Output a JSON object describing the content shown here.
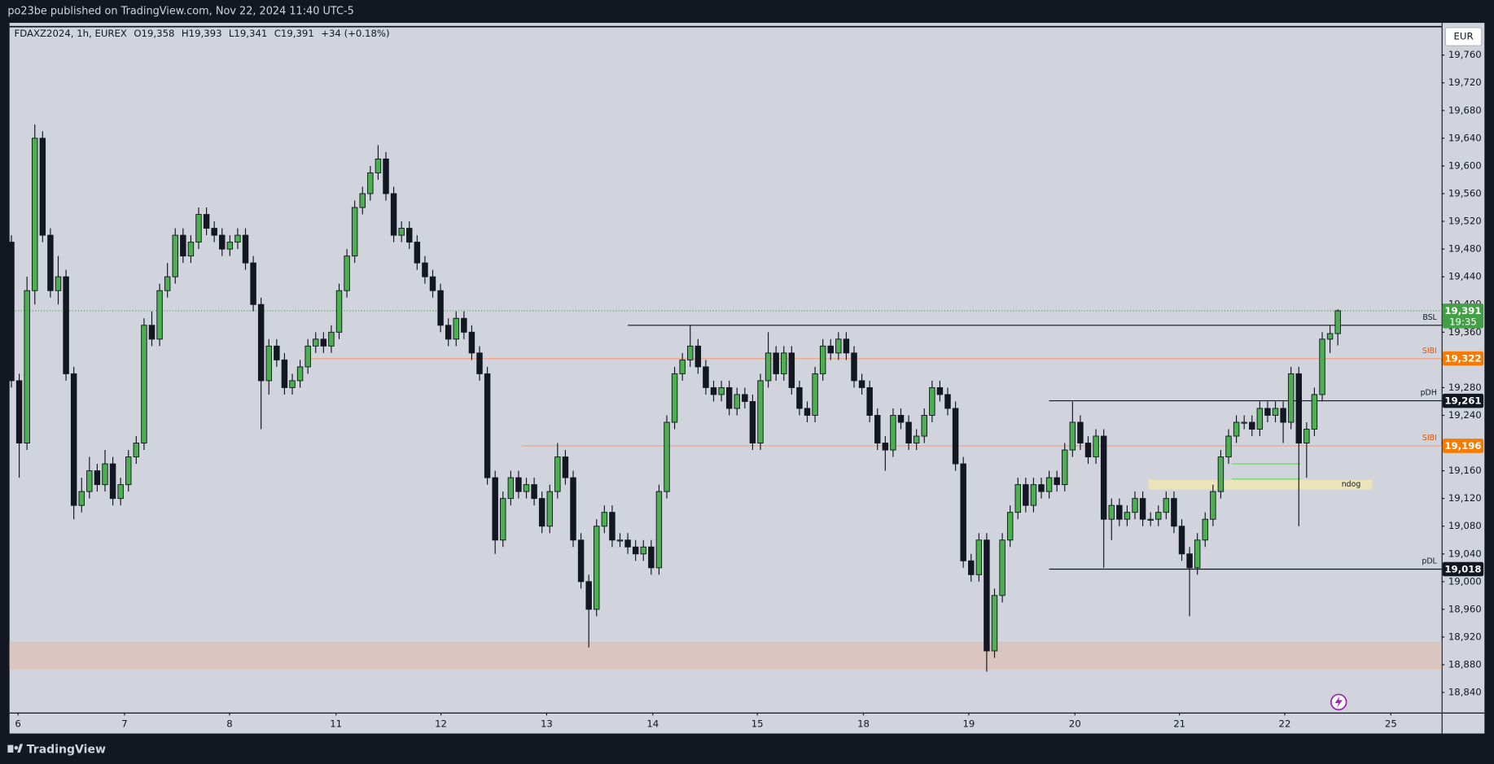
{
  "header": {
    "text": "po23be published on TradingView.com, Nov 22, 2024 11:40 UTC-5"
  },
  "footer": {
    "brand": "TradingView"
  },
  "chart_data": {
    "type": "candlestick",
    "legend": {
      "symbol": "FDAXZ2024, 1h, EUREX",
      "open": "O19,358",
      "high": "H19,393",
      "low": "L19,341",
      "close": "C19,391",
      "change": "+34 (+0.18%)"
    },
    "currency": "EUR",
    "up_color": "#4caf50",
    "down_color": "#131722",
    "xlim": [
      -0.24,
      183.3
    ],
    "xticks": [
      {
        "value": 0.85,
        "label": "6"
      },
      {
        "value": 14.5,
        "label": "7"
      },
      {
        "value": 27.96,
        "label": "8"
      },
      {
        "value": 41.6,
        "label": "11"
      },
      {
        "value": 55.05,
        "label": "12"
      },
      {
        "value": 68.6,
        "label": "13"
      },
      {
        "value": 82.2,
        "label": "14"
      },
      {
        "value": 95.6,
        "label": "15"
      },
      {
        "value": 109.2,
        "label": "18"
      },
      {
        "value": 122.7,
        "label": "19"
      },
      {
        "value": 136.3,
        "label": "20"
      },
      {
        "value": 149.7,
        "label": "21"
      },
      {
        "value": 163.2,
        "label": "22"
      },
      {
        "value": 176.8,
        "label": "25"
      }
    ],
    "ylim": [
      18811,
      19801
    ],
    "yticks": [
      {
        "value": 18840,
        "label": "18,840"
      },
      {
        "value": 18880,
        "label": "18,880"
      },
      {
        "value": 18920,
        "label": "18,920"
      },
      {
        "value": 18960,
        "label": "18,960"
      },
      {
        "value": 19000,
        "label": "19,000"
      },
      {
        "value": 19040,
        "label": "19,040"
      },
      {
        "value": 19080,
        "label": "19,080"
      },
      {
        "value": 19120,
        "label": "19,120"
      },
      {
        "value": 19160,
        "label": "19,160"
      },
      {
        "value": 19200,
        "label": "19,200"
      },
      {
        "value": 19240,
        "label": "19,240"
      },
      {
        "value": 19280,
        "label": "19,280"
      },
      {
        "value": 19320,
        "label": "19,320"
      },
      {
        "value": 19360,
        "label": "19,360"
      },
      {
        "value": 19400,
        "label": "19,400"
      },
      {
        "value": 19440,
        "label": "19,440"
      },
      {
        "value": 19480,
        "label": "19,480"
      },
      {
        "value": 19520,
        "label": "19,520"
      },
      {
        "value": 19560,
        "label": "19,560"
      },
      {
        "value": 19600,
        "label": "19,600"
      },
      {
        "value": 19640,
        "label": "19,640"
      },
      {
        "value": 19680,
        "label": "19,680"
      },
      {
        "value": 19720,
        "label": "19,720"
      },
      {
        "value": 19760,
        "label": "19,760"
      }
    ],
    "last_price": {
      "value": 19391,
      "label": "19,391",
      "countdown": "19:35",
      "color": "#43a047"
    },
    "levels": [
      {
        "name": "BSL",
        "value": 19370,
        "from": 79,
        "color": "#131722"
      },
      {
        "name": "SIBI",
        "value": 19322,
        "label": "19,322",
        "from": 37.6,
        "color": "#f0a27e",
        "tag_color": "#f57c00"
      },
      {
        "name": "pDH",
        "value": 19261,
        "label": "19,261",
        "from": 133,
        "color": "#131722",
        "tag_color": "#131722"
      },
      {
        "name": "SIBI",
        "value": 19196,
        "label": "19,196",
        "from": 65.4,
        "color": "#f0a27e",
        "tag_color": "#f57c00"
      },
      {
        "name": "pDL",
        "value": 19018,
        "label": "19,018",
        "from": 133,
        "color": "#131722",
        "tag_color": "#131722"
      }
    ],
    "zones": [
      {
        "low": 18873,
        "high": 18913,
        "color": "#dbc3bc"
      },
      {
        "name": "ndog",
        "low": 19133,
        "high": 19147,
        "from": 145.7,
        "to": 174.4,
        "color": "#ece6b4"
      }
    ],
    "marks": [
      {
        "value": 19170,
        "from": 156.4,
        "to": 165.2,
        "color": "#5fd35f"
      },
      {
        "value": 19148,
        "from": 156.4,
        "to": 165.2,
        "color": "#5fd35f"
      }
    ],
    "ohlc": [
      [
        19490,
        19500,
        19280,
        19290
      ],
      [
        19290,
        19300,
        19150,
        19200
      ],
      [
        19200,
        19440,
        19190,
        19420
      ],
      [
        19420,
        19660,
        19400,
        19640
      ],
      [
        19640,
        19650,
        19490,
        19500
      ],
      [
        19500,
        19510,
        19410,
        19420
      ],
      [
        19420,
        19470,
        19400,
        19440
      ],
      [
        19440,
        19450,
        19290,
        19300
      ],
      [
        19300,
        19310,
        19090,
        19110
      ],
      [
        19110,
        19150,
        19100,
        19130
      ],
      [
        19130,
        19180,
        19120,
        19160
      ],
      [
        19160,
        19170,
        19130,
        19140
      ],
      [
        19140,
        19190,
        19130,
        19170
      ],
      [
        19170,
        19180,
        19110,
        19120
      ],
      [
        19120,
        19150,
        19110,
        19140
      ],
      [
        19140,
        19190,
        19130,
        19180
      ],
      [
        19180,
        19210,
        19170,
        19200
      ],
      [
        19200,
        19380,
        19190,
        19370
      ],
      [
        19370,
        19390,
        19340,
        19350
      ],
      [
        19350,
        19430,
        19340,
        19420
      ],
      [
        19420,
        19460,
        19410,
        19440
      ],
      [
        19440,
        19510,
        19430,
        19500
      ],
      [
        19500,
        19510,
        19460,
        19470
      ],
      [
        19470,
        19500,
        19460,
        19490
      ],
      [
        19490,
        19540,
        19480,
        19530
      ],
      [
        19530,
        19540,
        19500,
        19510
      ],
      [
        19510,
        19520,
        19490,
        19500
      ],
      [
        19500,
        19510,
        19470,
        19480
      ],
      [
        19480,
        19500,
        19470,
        19490
      ],
      [
        19490,
        19510,
        19480,
        19500
      ],
      [
        19500,
        19510,
        19450,
        19460
      ],
      [
        19460,
        19470,
        19390,
        19400
      ],
      [
        19400,
        19410,
        19220,
        19290
      ],
      [
        19290,
        19350,
        19270,
        19340
      ],
      [
        19340,
        19350,
        19310,
        19320
      ],
      [
        19320,
        19330,
        19270,
        19280
      ],
      [
        19280,
        19300,
        19270,
        19290
      ],
      [
        19290,
        19320,
        19280,
        19310
      ],
      [
        19310,
        19350,
        19300,
        19340
      ],
      [
        19340,
        19360,
        19330,
        19350
      ],
      [
        19350,
        19360,
        19330,
        19340
      ],
      [
        19340,
        19370,
        19330,
        19360
      ],
      [
        19360,
        19430,
        19350,
        19420
      ],
      [
        19420,
        19480,
        19410,
        19470
      ],
      [
        19470,
        19550,
        19460,
        19540
      ],
      [
        19540,
        19570,
        19530,
        19560
      ],
      [
        19560,
        19600,
        19550,
        19590
      ],
      [
        19590,
        19630,
        19580,
        19610
      ],
      [
        19610,
        19620,
        19550,
        19560
      ],
      [
        19560,
        19570,
        19490,
        19500
      ],
      [
        19500,
        19520,
        19490,
        19510
      ],
      [
        19510,
        19520,
        19480,
        19490
      ],
      [
        19490,
        19500,
        19450,
        19460
      ],
      [
        19460,
        19470,
        19430,
        19440
      ],
      [
        19440,
        19450,
        19410,
        19420
      ],
      [
        19420,
        19430,
        19360,
        19370
      ],
      [
        19370,
        19380,
        19340,
        19350
      ],
      [
        19350,
        19390,
        19340,
        19380
      ],
      [
        19380,
        19390,
        19350,
        19360
      ],
      [
        19360,
        19370,
        19320,
        19330
      ],
      [
        19330,
        19340,
        19290,
        19300
      ],
      [
        19300,
        19310,
        19140,
        19150
      ],
      [
        19150,
        19160,
        19040,
        19060
      ],
      [
        19060,
        19130,
        19050,
        19120
      ],
      [
        19120,
        19160,
        19110,
        19150
      ],
      [
        19150,
        19160,
        19120,
        19130
      ],
      [
        19130,
        19150,
        19120,
        19140
      ],
      [
        19140,
        19150,
        19110,
        19120
      ],
      [
        19120,
        19130,
        19070,
        19080
      ],
      [
        19080,
        19140,
        19070,
        19130
      ],
      [
        19130,
        19200,
        19120,
        19180
      ],
      [
        19180,
        19190,
        19140,
        19150
      ],
      [
        19150,
        19160,
        19050,
        19060
      ],
      [
        19060,
        19070,
        18990,
        19000
      ],
      [
        19000,
        19010,
        18905,
        18960
      ],
      [
        18960,
        19090,
        18950,
        19080
      ],
      [
        19080,
        19110,
        19070,
        19100
      ],
      [
        19100,
        19110,
        19050,
        19060
      ],
      [
        19060,
        19070,
        19050,
        19060
      ],
      [
        19060,
        19070,
        19040,
        19050
      ],
      [
        19050,
        19060,
        19030,
        19040
      ],
      [
        19040,
        19060,
        19030,
        19050
      ],
      [
        19050,
        19060,
        19010,
        19020
      ],
      [
        19020,
        19140,
        19010,
        19130
      ],
      [
        19130,
        19240,
        19120,
        19230
      ],
      [
        19230,
        19310,
        19220,
        19300
      ],
      [
        19300,
        19330,
        19290,
        19320
      ],
      [
        19320,
        19370,
        19310,
        19340
      ],
      [
        19340,
        19350,
        19300,
        19310
      ],
      [
        19310,
        19320,
        19270,
        19280
      ],
      [
        19280,
        19290,
        19260,
        19270
      ],
      [
        19270,
        19290,
        19260,
        19280
      ],
      [
        19280,
        19290,
        19240,
        19250
      ],
      [
        19250,
        19280,
        19240,
        19270
      ],
      [
        19270,
        19280,
        19250,
        19260
      ],
      [
        19260,
        19270,
        19190,
        19200
      ],
      [
        19200,
        19300,
        19190,
        19290
      ],
      [
        19290,
        19360,
        19280,
        19330
      ],
      [
        19330,
        19340,
        19290,
        19300
      ],
      [
        19300,
        19340,
        19290,
        19330
      ],
      [
        19330,
        19340,
        19270,
        19280
      ],
      [
        19280,
        19290,
        19240,
        19250
      ],
      [
        19250,
        19260,
        19230,
        19240
      ],
      [
        19240,
        19310,
        19230,
        19300
      ],
      [
        19300,
        19350,
        19290,
        19340
      ],
      [
        19340,
        19350,
        19320,
        19330
      ],
      [
        19330,
        19360,
        19320,
        19350
      ],
      [
        19350,
        19360,
        19320,
        19330
      ],
      [
        19330,
        19340,
        19280,
        19290
      ],
      [
        19290,
        19300,
        19270,
        19280
      ],
      [
        19280,
        19290,
        19230,
        19240
      ],
      [
        19240,
        19250,
        19190,
        19200
      ],
      [
        19200,
        19210,
        19160,
        19190
      ],
      [
        19190,
        19250,
        19180,
        19240
      ],
      [
        19240,
        19250,
        19220,
        19230
      ],
      [
        19230,
        19240,
        19190,
        19200
      ],
      [
        19200,
        19220,
        19190,
        19210
      ],
      [
        19210,
        19250,
        19200,
        19240
      ],
      [
        19240,
        19290,
        19230,
        19280
      ],
      [
        19280,
        19290,
        19260,
        19270
      ],
      [
        19270,
        19280,
        19240,
        19250
      ],
      [
        19250,
        19260,
        19160,
        19170
      ],
      [
        19170,
        19180,
        19020,
        19030
      ],
      [
        19030,
        19040,
        19000,
        19010
      ],
      [
        19010,
        19070,
        19000,
        19060
      ],
      [
        19060,
        19070,
        18870,
        18900
      ],
      [
        18900,
        18990,
        18890,
        18980
      ],
      [
        18980,
        19070,
        18970,
        19060
      ],
      [
        19060,
        19110,
        19050,
        19100
      ],
      [
        19100,
        19150,
        19090,
        19140
      ],
      [
        19140,
        19150,
        19100,
        19110
      ],
      [
        19110,
        19150,
        19100,
        19140
      ],
      [
        19140,
        19150,
        19120,
        19130
      ],
      [
        19130,
        19160,
        19120,
        19150
      ],
      [
        19150,
        19160,
        19130,
        19140
      ],
      [
        19140,
        19200,
        19130,
        19190
      ],
      [
        19190,
        19260,
        19180,
        19230
      ],
      [
        19230,
        19240,
        19190,
        19200
      ],
      [
        19200,
        19210,
        19170,
        19180
      ],
      [
        19180,
        19220,
        19170,
        19210
      ],
      [
        19210,
        19220,
        19020,
        19090
      ],
      [
        19090,
        19120,
        19060,
        19110
      ],
      [
        19110,
        19120,
        19080,
        19090
      ],
      [
        19090,
        19110,
        19080,
        19100
      ],
      [
        19100,
        19130,
        19090,
        19120
      ],
      [
        19120,
        19130,
        19080,
        19090
      ],
      [
        19090,
        19100,
        19080,
        19090
      ],
      [
        19090,
        19110,
        19080,
        19100
      ],
      [
        19100,
        19130,
        19090,
        19120
      ],
      [
        19120,
        19130,
        19070,
        19080
      ],
      [
        19080,
        19090,
        19030,
        19040
      ],
      [
        19040,
        19050,
        18950,
        19020
      ],
      [
        19020,
        19070,
        19010,
        19060
      ],
      [
        19060,
        19100,
        19050,
        19090
      ],
      [
        19090,
        19140,
        19080,
        19130
      ],
      [
        19130,
        19190,
        19120,
        19180
      ],
      [
        19180,
        19220,
        19170,
        19210
      ],
      [
        19210,
        19240,
        19200,
        19230
      ],
      [
        19230,
        19240,
        19220,
        19230
      ],
      [
        19230,
        19240,
        19210,
        19220
      ],
      [
        19220,
        19260,
        19210,
        19250
      ],
      [
        19250,
        19260,
        19230,
        19240
      ],
      [
        19240,
        19260,
        19230,
        19250
      ],
      [
        19250,
        19260,
        19200,
        19230
      ],
      [
        19230,
        19310,
        19220,
        19300
      ],
      [
        19300,
        19310,
        19080,
        19200
      ],
      [
        19200,
        19230,
        19150,
        19220
      ],
      [
        19220,
        19280,
        19210,
        19270
      ],
      [
        19270,
        19360,
        19260,
        19350
      ],
      [
        19350,
        19370,
        19330,
        19358
      ],
      [
        19358,
        19393,
        19341,
        19391
      ]
    ]
  }
}
